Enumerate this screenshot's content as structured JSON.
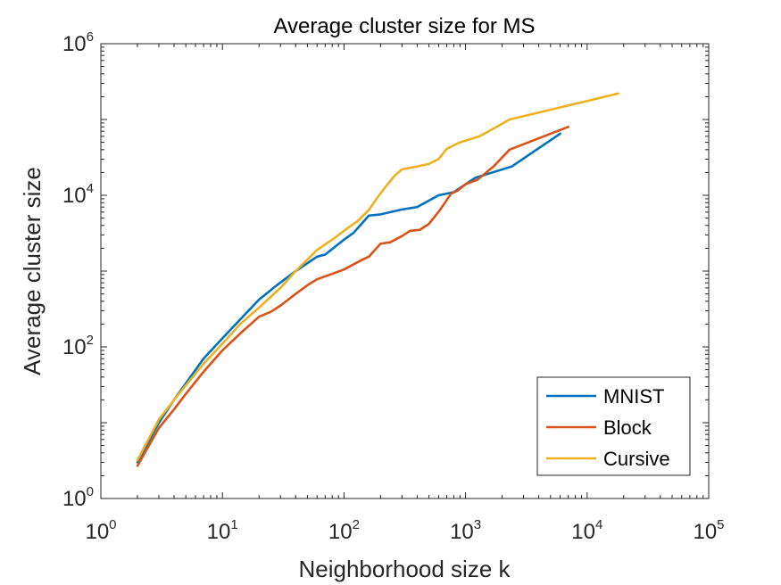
{
  "chart_data": {
    "type": "line",
    "title": "Average cluster size for MS",
    "xlabel": "Neighborhood size k",
    "ylabel": "Average cluster size",
    "xscale": "log",
    "yscale": "log",
    "xlim": [
      1,
      100000
    ],
    "ylim": [
      1,
      1000000
    ],
    "grid": false,
    "legend_location": "bottom-right",
    "x_ticks": [
      {
        "value": 1,
        "base": "10",
        "exp": "0"
      },
      {
        "value": 10,
        "base": "10",
        "exp": "1"
      },
      {
        "value": 100,
        "base": "10",
        "exp": "2"
      },
      {
        "value": 1000,
        "base": "10",
        "exp": "3"
      },
      {
        "value": 10000,
        "base": "10",
        "exp": "4"
      },
      {
        "value": 100000,
        "base": "10",
        "exp": "5"
      }
    ],
    "y_ticks": [
      {
        "value": 1,
        "base": "10",
        "exp": "0"
      },
      {
        "value": 100,
        "base": "10",
        "exp": "2"
      },
      {
        "value": 10000,
        "base": "10",
        "exp": "4"
      },
      {
        "value": 1000000,
        "base": "10",
        "exp": "6"
      }
    ],
    "series": [
      {
        "name": "MNIST",
        "color": "#0072BD",
        "x": [
          2,
          3,
          4,
          5,
          7,
          10,
          14,
          20,
          28,
          40,
          60,
          70,
          100,
          120,
          160,
          200,
          300,
          400,
          600,
          800,
          1200,
          2400,
          6000
        ],
        "y": [
          3,
          10,
          20,
          33,
          70,
          130,
          230,
          420,
          650,
          1000,
          1550,
          1650,
          2600,
          3200,
          5400,
          5600,
          6500,
          7000,
          10000,
          11000,
          17000,
          24000,
          65000
        ]
      },
      {
        "name": "Block",
        "color": "#D95319",
        "x": [
          2,
          3,
          4,
          5,
          7,
          10,
          14,
          20,
          25,
          30,
          40,
          50,
          60,
          80,
          100,
          140,
          160,
          200,
          240,
          300,
          350,
          420,
          500,
          620,
          760,
          860,
          1000,
          1250,
          1700,
          2300,
          7000
        ],
        "y": [
          2.7,
          8.5,
          15,
          24,
          47,
          90,
          150,
          250,
          290,
          350,
          500,
          650,
          780,
          920,
          1050,
          1400,
          1550,
          2300,
          2400,
          2900,
          3400,
          3500,
          4200,
          6500,
          10500,
          11500,
          14000,
          16000,
          24000,
          40000,
          80000
        ]
      },
      {
        "name": "Cursive",
        "color": "#EDB120",
        "x": [
          2,
          3,
          4,
          5,
          7,
          10,
          14,
          20,
          30,
          40,
          60,
          80,
          100,
          130,
          160,
          190,
          220,
          260,
          300,
          400,
          500,
          600,
          700,
          900,
          1300,
          1800,
          2300,
          18000
        ],
        "y": [
          3.2,
          11,
          20,
          31,
          60,
          110,
          200,
          330,
          600,
          1000,
          1900,
          2600,
          3400,
          4600,
          6400,
          9500,
          13000,
          18000,
          22000,
          24000,
          26000,
          30000,
          41000,
          50000,
          60000,
          80000,
          100000,
          220000
        ]
      }
    ]
  }
}
